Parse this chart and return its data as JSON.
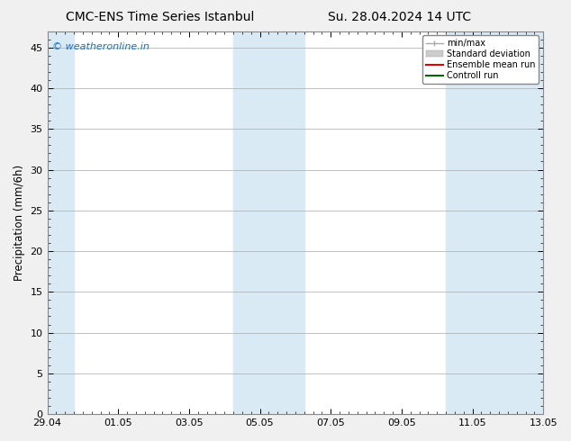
{
  "title_left": "CMC-ENS Time Series Istanbul",
  "title_right": "Su. 28.04.2024 14 UTC",
  "ylabel": "Precipitation (mm/6h)",
  "watermark": "© weatheronline.in",
  "watermark_color": "#1a6fbe",
  "xlim_start": 0,
  "xlim_end": 336,
  "ylim": [
    0,
    47
  ],
  "yticks": [
    0,
    5,
    10,
    15,
    20,
    25,
    30,
    35,
    40,
    45
  ],
  "xtick_labels": [
    "29.04",
    "01.05",
    "03.05",
    "05.05",
    "07.05",
    "09.05",
    "11.05",
    "13.05"
  ],
  "xtick_positions": [
    0,
    48,
    96,
    144,
    192,
    240,
    288,
    336
  ],
  "shaded_bands": [
    {
      "xmin": 0,
      "xmax": 18,
      "color": "#daeaf5"
    },
    {
      "xmin": 126,
      "xmax": 174,
      "color": "#daeaf5"
    },
    {
      "xmin": 270,
      "xmax": 336,
      "color": "#daeaf5"
    }
  ],
  "legend_items": [
    {
      "label": "min/max",
      "color": "#aaaaaa",
      "lw": 1.0,
      "ls": "-",
      "type": "errbar"
    },
    {
      "label": "Standard deviation",
      "color": "#cccccc",
      "lw": 8,
      "ls": "-",
      "type": "patch"
    },
    {
      "label": "Ensemble mean run",
      "color": "#dd0000",
      "lw": 1.5,
      "ls": "-",
      "type": "line"
    },
    {
      "label": "Controll run",
      "color": "#006600",
      "lw": 1.5,
      "ls": "-",
      "type": "line"
    }
  ],
  "bg_color": "#f0f0f0",
  "plot_bg_color": "#ffffff",
  "grid_color": "#aaaaaa",
  "title_fontsize": 10,
  "label_fontsize": 8.5,
  "tick_fontsize": 8,
  "watermark_fontsize": 8
}
